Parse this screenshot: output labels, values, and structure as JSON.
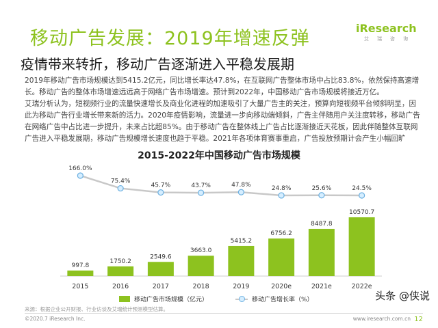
{
  "header": {
    "title": "移动广告发展：2019年增速反弹",
    "subtitle": "疫情带来转折，移动广告逐渐进入平稳发展期",
    "logo_text": "iResearch",
    "logo_cn": "艾瑞咨询"
  },
  "body": {
    "paragraph1": "2019年移动广告市场规模达到5415.2亿元，同比增长率达47.8%，在互联网广告整体市场中占比83.8%，依然保持高速增长。移动广告的整体市场增速远远高于网络广告市场增速。预计到2022年，中国移动广告市场规模将接近万亿。",
    "paragraph2": "艾瑞分析认为，短视频行业的流量快速增长及商业化进程的加速吸引了大量广告主的关注，预算向短视频平台倾斜明显，因此为移动广告行业增长带来新的活力。2020年疫情影响，流量进一步向移动端倾斜，广告主伴随用户关注度转移，移动广告在网络广告中占比进一步提升，未来占比超85%。由于移动广告在整体线上广告占比逐渐接近天花板，因此伴随整体互联网广告进入平稳发展期，移动广告规模增长速度也趋于平稳。2021年各项体育赛事重启，广告投放预期计会产生小幅回旷"
  },
  "chart_data": {
    "type": "bar",
    "title": "2015-2022年中国移动广告市场规模",
    "categories": [
      "2015",
      "2016",
      "2017",
      "2018",
      "2019",
      "2020e",
      "2021e",
      "2022e"
    ],
    "series": [
      {
        "name": "移动广告市场规模（亿元）",
        "type": "bar",
        "values": [
          997.8,
          1750.2,
          2549.6,
          3663.0,
          5415.2,
          6756.2,
          8487.8,
          10570.7
        ],
        "labels": [
          "997.8",
          "1750.2",
          "2549.6",
          "3663.0",
          "5415.2",
          "6756.2",
          "8487.8",
          "10570.7"
        ],
        "color": "#8dc21f"
      },
      {
        "name": "移动广告增长率（%）",
        "type": "line",
        "values": [
          166.0,
          75.4,
          45.7,
          43.7,
          47.8,
          24.8,
          25.6,
          24.5
        ],
        "labels": [
          "166.0%",
          "75.4%",
          "45.7%",
          "43.7%",
          "47.8%",
          "24.8%",
          "25.6%",
          "24.5%"
        ],
        "color": "#c8c8c8",
        "marker_color": "#6cb0e0"
      }
    ],
    "legend_position": "bottom",
    "grid": false
  },
  "footer": {
    "source": "来源：根据企业公开财报、行业访谈及艾瑞统计预测模型估算。",
    "copyright": "©2020.7 iResearch Inc.",
    "website": "www.iresearch.com.cn",
    "page_number": "12",
    "watermark": "头条 @侠说"
  }
}
